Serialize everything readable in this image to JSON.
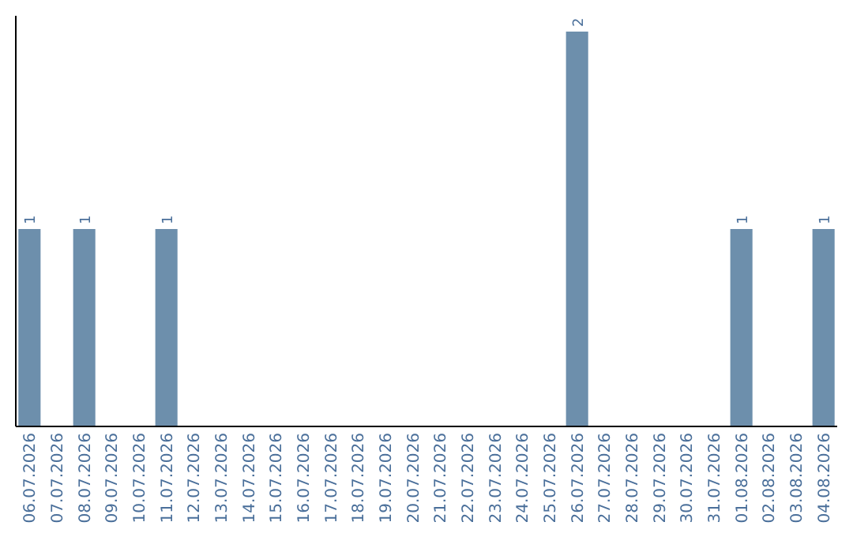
{
  "chart_data": {
    "type": "bar",
    "categories": [
      "06.07.2026",
      "07.07.2026",
      "08.07.2026",
      "09.07.2026",
      "10.07.2026",
      "11.07.2026",
      "12.07.2026",
      "13.07.2026",
      "14.07.2026",
      "15.07.2026",
      "16.07.2026",
      "17.07.2026",
      "18.07.2026",
      "19.07.2026",
      "20.07.2026",
      "21.07.2026",
      "22.07.2026",
      "23.07.2026",
      "24.07.2026",
      "25.07.2026",
      "26.07.2026",
      "27.07.2026",
      "28.07.2026",
      "29.07.2026",
      "30.07.2026",
      "31.07.2026",
      "01.08.2026",
      "02.08.2026",
      "03.08.2026",
      "04.08.2026"
    ],
    "values": [
      1,
      0,
      1,
      0,
      0,
      1,
      0,
      0,
      0,
      0,
      0,
      0,
      0,
      0,
      0,
      0,
      0,
      0,
      0,
      0,
      2,
      0,
      0,
      0,
      0,
      0,
      1,
      0,
      0,
      1
    ],
    "value_labels": [
      "1",
      null,
      "1",
      null,
      null,
      "1",
      null,
      null,
      null,
      null,
      null,
      null,
      null,
      null,
      null,
      null,
      null,
      null,
      null,
      null,
      "2",
      null,
      null,
      null,
      null,
      null,
      "1",
      null,
      null,
      "1"
    ],
    "color": "#6d8fac",
    "tick_labels": "x"
  }
}
